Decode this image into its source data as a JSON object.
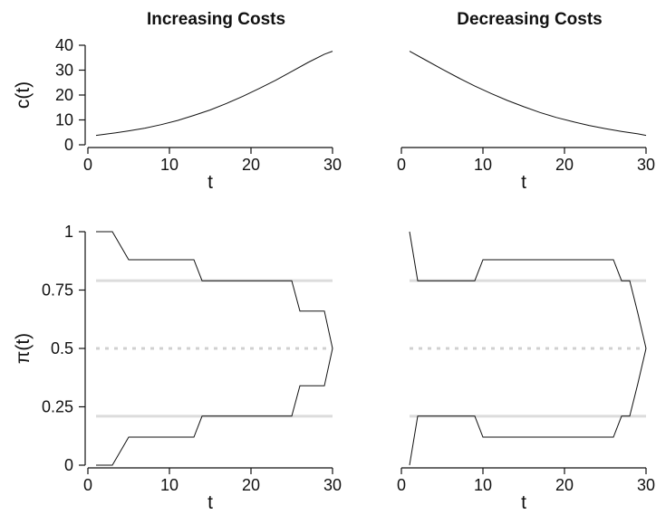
{
  "chart_data": [
    {
      "type": "line",
      "title": "Increasing Costs",
      "xlabel": "t",
      "ylabel": "c(t)",
      "xlim": [
        0,
        31
      ],
      "ylim": [
        0,
        40
      ],
      "xticks": [
        "0",
        "10",
        "20",
        "30"
      ],
      "yticks": [
        "0",
        "10",
        "20",
        "30",
        "40"
      ],
      "series": [
        {
          "x": [
            1,
            3,
            5,
            7,
            9,
            11,
            13,
            15,
            17,
            19,
            21,
            23,
            25,
            27,
            29,
            30
          ],
          "values": [
            3.8,
            4.6,
            5.6,
            6.7,
            8.1,
            9.8,
            11.8,
            14.0,
            16.6,
            19.5,
            22.6,
            25.9,
            29.5,
            33.1,
            36.4,
            37.6
          ]
        }
      ]
    },
    {
      "type": "line",
      "title": "Decreasing Costs",
      "xlabel": "t",
      "ylabel": "",
      "xlim": [
        0,
        31
      ],
      "ylim": [
        0,
        40
      ],
      "xticks": [
        "0",
        "10",
        "20",
        "30"
      ],
      "yticks": [],
      "series": [
        {
          "x": [
            1,
            3,
            5,
            7,
            9,
            11,
            13,
            15,
            17,
            19,
            21,
            23,
            25,
            27,
            29,
            30
          ],
          "values": [
            37.6,
            34.0,
            30.4,
            26.9,
            23.6,
            20.6,
            17.8,
            15.3,
            13.0,
            11.0,
            9.3,
            7.8,
            6.5,
            5.4,
            4.4,
            3.8
          ]
        }
      ]
    },
    {
      "type": "line",
      "title": "",
      "xlabel": "t",
      "ylabel": "π(t)",
      "xlim": [
        0,
        31
      ],
      "ylim": [
        0,
        1
      ],
      "xticks": [
        "0",
        "10",
        "20",
        "30"
      ],
      "yticks": [
        "0",
        "0.25",
        "0.5",
        "0.75",
        "1"
      ],
      "reference_lines": [
        {
          "y": 0.79,
          "style": "solid"
        },
        {
          "y": 0.5,
          "style": "dashed"
        },
        {
          "y": 0.21,
          "style": "solid"
        }
      ],
      "series": [
        {
          "x": [
            1,
            3,
            5,
            13,
            14,
            25,
            26,
            29,
            30
          ],
          "values": [
            1,
            1,
            0.88,
            0.88,
            0.79,
            0.79,
            0.66,
            0.66,
            0.5
          ]
        },
        {
          "x": [
            1,
            3,
            5,
            13,
            14,
            25,
            26,
            29,
            30
          ],
          "values": [
            0,
            0,
            0.12,
            0.12,
            0.21,
            0.21,
            0.34,
            0.34,
            0.5
          ]
        }
      ]
    },
    {
      "type": "line",
      "title": "",
      "xlabel": "t",
      "ylabel": "",
      "xlim": [
        0,
        31
      ],
      "ylim": [
        0,
        1
      ],
      "xticks": [
        "0",
        "10",
        "20",
        "30"
      ],
      "yticks": [],
      "reference_lines": [
        {
          "y": 0.79,
          "style": "solid"
        },
        {
          "y": 0.5,
          "style": "dashed"
        },
        {
          "y": 0.21,
          "style": "solid"
        }
      ],
      "series": [
        {
          "x": [
            1,
            2,
            9,
            10,
            26,
            27,
            28,
            29,
            30
          ],
          "values": [
            1,
            0.79,
            0.79,
            0.88,
            0.88,
            0.79,
            0.79,
            0.65,
            0.5
          ]
        },
        {
          "x": [
            1,
            2,
            9,
            10,
            26,
            27,
            28,
            29,
            30
          ],
          "values": [
            0,
            0.21,
            0.21,
            0.12,
            0.12,
            0.21,
            0.21,
            0.35,
            0.5
          ]
        }
      ]
    }
  ]
}
